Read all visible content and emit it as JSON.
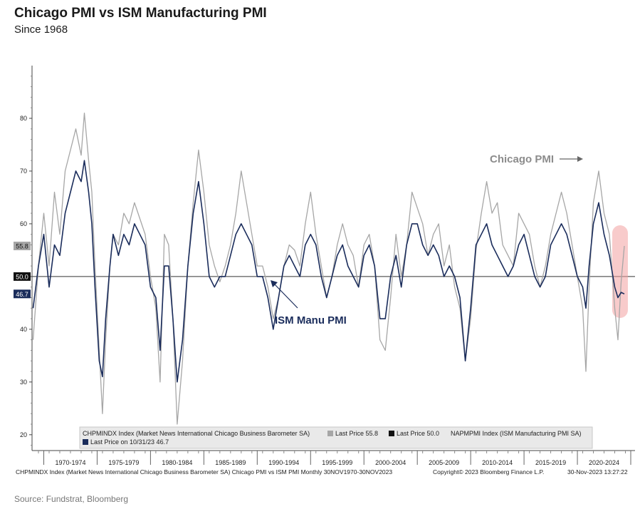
{
  "title": "Chicago PMI vs ISM Manufacturing PMI",
  "subtitle": "Since 1968",
  "source": "Source: Fundstrat, Bloomberg",
  "footer": {
    "left": "CHPMINDX Index (Market News International Chicago Business Barometer SA) Chicago PMI vs ISM PMI  Monthly 30NOV1970-30NOV2023",
    "copyright": "Copyright© 2023 Bloomberg Finance L.P.",
    "timestamp": "30-Nov-2023 13:27:22"
  },
  "annotations": {
    "chicago": "Chicago PMI",
    "ism": "ISM Manu PMI"
  },
  "legend": {
    "line1_index": "CHPMINDX Index (Market News International Chicago Business Barometer SA)",
    "line1_last": "Last Price 55.8",
    "line1_last2": "Last Price 50.0",
    "line1_index2": "NAPMPMI Index (ISM Manufacturing PMI SA)",
    "line2_last": "Last Price on 10/31/23 46.7"
  },
  "colors": {
    "chicago": "#a6a6a6",
    "ism": "#1a2c5b",
    "ref_line": "#333333",
    "highlight": "#f08080"
  },
  "chart_data": {
    "type": "line",
    "x_unit": "year",
    "xlim": [
      1968.4,
      2024.9
    ],
    "ylim": [
      17,
      90
    ],
    "yticks": [
      20,
      30,
      40,
      50,
      60,
      70,
      80
    ],
    "x_period_labels": [
      "1970-1974",
      "1975-1979",
      "1980-1984",
      "1985-1989",
      "1990-1994",
      "1995-1999",
      "2000-2004",
      "2005-2009",
      "2010-2014",
      "2015-2019",
      "2020-2024"
    ],
    "x_period_bounds": [
      1969.5,
      1974.5,
      1979.5,
      1984.5,
      1989.5,
      1994.5,
      1999.5,
      2004.5,
      2009.5,
      2014.5,
      2019.5,
      2024.5
    ],
    "reference_line": 50.0,
    "axis_value_labels": [
      "55.8",
      "50.0",
      "46.7"
    ],
    "series": [
      {
        "name": "Chicago PMI",
        "key": "chicago",
        "x": [
          1968.5,
          1969.0,
          1969.5,
          1970.0,
          1970.5,
          1971.0,
          1971.5,
          1972.0,
          1972.5,
          1973.0,
          1973.3,
          1973.7,
          1974.0,
          1974.3,
          1974.7,
          1975.0,
          1975.3,
          1975.7,
          1976.0,
          1976.5,
          1977.0,
          1977.5,
          1978.0,
          1978.5,
          1979.0,
          1979.5,
          1980.0,
          1980.4,
          1980.8,
          1981.2,
          1981.6,
          1982.0,
          1982.5,
          1983.0,
          1983.5,
          1984.0,
          1984.5,
          1985.0,
          1985.5,
          1986.0,
          1986.5,
          1987.0,
          1987.5,
          1988.0,
          1988.5,
          1989.0,
          1989.5,
          1990.0,
          1990.5,
          1991.0,
          1991.5,
          1992.0,
          1992.5,
          1993.0,
          1993.5,
          1994.0,
          1994.5,
          1995.0,
          1995.5,
          1996.0,
          1996.5,
          1997.0,
          1997.5,
          1998.0,
          1998.5,
          1999.0,
          1999.5,
          2000.0,
          2000.5,
          2001.0,
          2001.5,
          2002.0,
          2002.5,
          2003.0,
          2003.5,
          2004.0,
          2004.5,
          2005.0,
          2005.5,
          2006.0,
          2006.5,
          2007.0,
          2007.5,
          2008.0,
          2008.5,
          2009.0,
          2009.5,
          2010.0,
          2010.5,
          2011.0,
          2011.5,
          2012.0,
          2012.5,
          2013.0,
          2013.5,
          2014.0,
          2014.5,
          2015.0,
          2015.5,
          2016.0,
          2016.5,
          2017.0,
          2017.5,
          2018.0,
          2018.5,
          2019.0,
          2019.5,
          2020.0,
          2020.3,
          2020.6,
          2021.0,
          2021.5,
          2022.0,
          2022.5,
          2023.0,
          2023.3,
          2023.6,
          2023.9
        ],
        "y": [
          38,
          52,
          62,
          52,
          66,
          58,
          70,
          74,
          78,
          73,
          81,
          72,
          66,
          52,
          36,
          24,
          38,
          52,
          58,
          56,
          62,
          60,
          64,
          61,
          58,
          50,
          44,
          30,
          58,
          56,
          42,
          22,
          34,
          52,
          64,
          74,
          66,
          56,
          52,
          49,
          52,
          56,
          62,
          70,
          64,
          58,
          52,
          52,
          48,
          42,
          46,
          52,
          56,
          55,
          52,
          60,
          66,
          58,
          52,
          46,
          50,
          56,
          60,
          56,
          54,
          48,
          56,
          58,
          52,
          38,
          36,
          46,
          58,
          50,
          56,
          66,
          63,
          60,
          54,
          58,
          60,
          52,
          56,
          48,
          44,
          34,
          42,
          55,
          62,
          68,
          62,
          64,
          56,
          54,
          52,
          62,
          60,
          58,
          52,
          48,
          52,
          58,
          62,
          66,
          62,
          56,
          50,
          44,
          32,
          48,
          64,
          70,
          62,
          58,
          44,
          38,
          49,
          55.8
        ]
      },
      {
        "name": "ISM Manu PMI",
        "key": "ism",
        "x": [
          1968.5,
          1969.0,
          1969.5,
          1970.0,
          1970.5,
          1971.0,
          1971.5,
          1972.0,
          1972.5,
          1973.0,
          1973.3,
          1973.7,
          1974.0,
          1974.3,
          1974.7,
          1975.0,
          1975.3,
          1975.7,
          1976.0,
          1976.5,
          1977.0,
          1977.5,
          1978.0,
          1978.5,
          1979.0,
          1979.5,
          1980.0,
          1980.4,
          1980.8,
          1981.2,
          1981.6,
          1982.0,
          1982.5,
          1983.0,
          1983.5,
          1984.0,
          1984.5,
          1985.0,
          1985.5,
          1986.0,
          1986.5,
          1987.0,
          1987.5,
          1988.0,
          1988.5,
          1989.0,
          1989.5,
          1990.0,
          1990.5,
          1991.0,
          1991.5,
          1992.0,
          1992.5,
          1993.0,
          1993.5,
          1994.0,
          1994.5,
          1995.0,
          1995.5,
          1996.0,
          1996.5,
          1997.0,
          1997.5,
          1998.0,
          1998.5,
          1999.0,
          1999.5,
          2000.0,
          2000.5,
          2001.0,
          2001.5,
          2002.0,
          2002.5,
          2003.0,
          2003.5,
          2004.0,
          2004.5,
          2005.0,
          2005.5,
          2006.0,
          2006.5,
          2007.0,
          2007.5,
          2008.0,
          2008.5,
          2009.0,
          2009.5,
          2010.0,
          2010.5,
          2011.0,
          2011.5,
          2012.0,
          2012.5,
          2013.0,
          2013.5,
          2014.0,
          2014.5,
          2015.0,
          2015.5,
          2016.0,
          2016.5,
          2017.0,
          2017.5,
          2018.0,
          2018.5,
          2019.0,
          2019.5,
          2020.0,
          2020.3,
          2020.6,
          2021.0,
          2021.5,
          2022.0,
          2022.5,
          2023.0,
          2023.3,
          2023.6,
          2023.9
        ],
        "y": [
          44,
          52,
          58,
          48,
          56,
          54,
          62,
          66,
          70,
          68,
          72,
          66,
          60,
          48,
          34,
          31,
          42,
          52,
          58,
          54,
          58,
          56,
          60,
          58,
          56,
          48,
          46,
          36,
          52,
          52,
          42,
          30,
          38,
          52,
          62,
          68,
          60,
          50,
          48,
          50,
          50,
          54,
          58,
          60,
          58,
          56,
          50,
          50,
          46,
          40,
          46,
          52,
          54,
          52,
          50,
          56,
          58,
          56,
          50,
          46,
          50,
          54,
          56,
          52,
          50,
          48,
          54,
          56,
          52,
          42,
          42,
          50,
          54,
          48,
          56,
          60,
          60,
          56,
          54,
          56,
          54,
          50,
          52,
          50,
          46,
          34,
          44,
          56,
          58,
          60,
          56,
          54,
          52,
          50,
          52,
          56,
          58,
          54,
          50,
          48,
          50,
          56,
          58,
          60,
          58,
          54,
          50,
          48,
          44,
          52,
          60,
          64,
          58,
          54,
          48,
          46,
          47,
          46.7
        ]
      }
    ]
  }
}
